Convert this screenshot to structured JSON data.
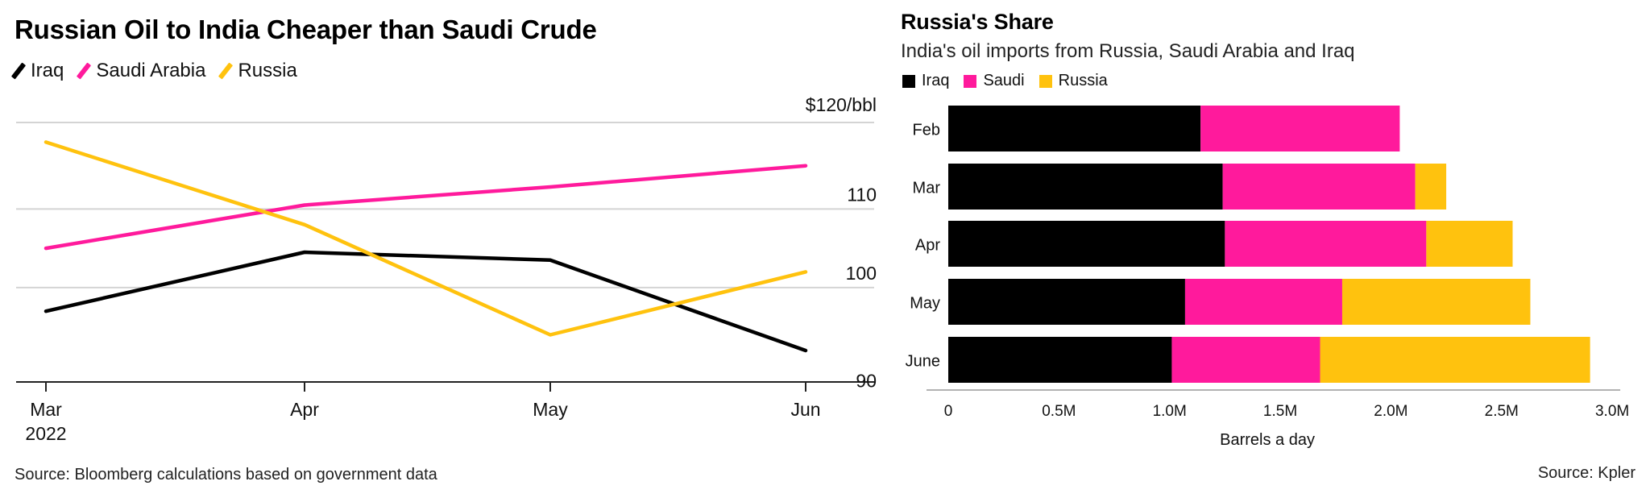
{
  "chart_data": [
    {
      "type": "line",
      "title": "Russian Oil to India Cheaper than Saudi Crude",
      "x": [
        "Mar",
        "Apr",
        "May",
        "Jun"
      ],
      "x_sublabels": [
        "2022",
        "",
        "",
        ""
      ],
      "y_unit_label": "$120/bbl",
      "yticks": [
        90,
        100,
        110
      ],
      "ylim": [
        88,
        121
      ],
      "grid": true,
      "y_axis_position": "right",
      "legend_position": "top-left",
      "series": [
        {
          "name": "Iraq",
          "color": "#000000",
          "values": [
            97,
            104.5,
            103.5,
            92
          ]
        },
        {
          "name": "Saudi Arabia",
          "color": "#ff1a9c",
          "values": [
            105,
            110.5,
            112.8,
            115.5
          ]
        },
        {
          "name": "Russia",
          "color": "#ffc20e",
          "values": [
            118.5,
            108,
            94,
            102
          ]
        }
      ],
      "source": "Source: Bloomberg calculations based on government data"
    },
    {
      "type": "bar",
      "orientation": "horizontal",
      "stacked": true,
      "title": "Russia's Share",
      "subtitle": "India's oil imports from Russia, Saudi Arabia and Iraq",
      "categories": [
        "Feb",
        "Mar",
        "Apr",
        "May",
        "June"
      ],
      "xlabel": "Barrels a day",
      "xticks": [
        "0",
        "0.5M",
        "1.0M",
        "1.5M",
        "2.0M",
        "2.5M",
        "3.0M"
      ],
      "xlim": [
        0,
        3.0
      ],
      "unit": "million barrels a day",
      "legend_position": "top-left",
      "series": [
        {
          "name": "Iraq",
          "color": "#000000",
          "values": [
            1.14,
            1.24,
            1.25,
            1.07,
            1.01
          ]
        },
        {
          "name": "Saudi",
          "color": "#ff1a9c",
          "values": [
            0.9,
            0.87,
            0.91,
            0.71,
            0.67
          ]
        },
        {
          "name": "Russia",
          "color": "#ffc20e",
          "values": [
            0.0,
            0.14,
            0.39,
            0.85,
            1.22
          ]
        }
      ],
      "source": "Source: Kpler"
    }
  ]
}
